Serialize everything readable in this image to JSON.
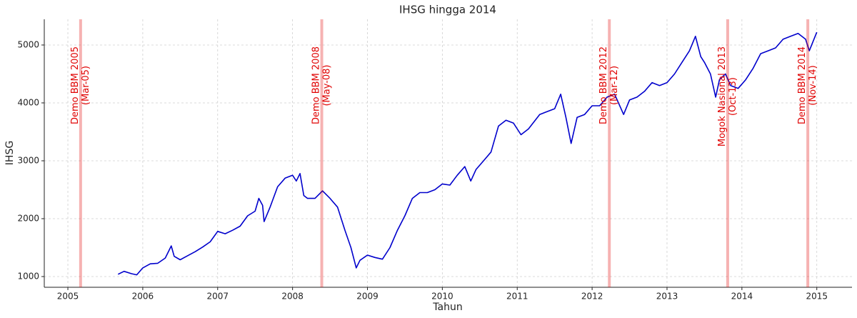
{
  "chart_data": {
    "type": "line",
    "title": "IHSG hingga 2014",
    "xlabel": "Tahun",
    "ylabel": "IHSG",
    "xlim": [
      2004.685,
      2015.47
    ],
    "ylim": [
      815,
      5444
    ],
    "xticks": [
      2005,
      2006,
      2007,
      2008,
      2009,
      2010,
      2011,
      2012,
      2013,
      2014,
      2015
    ],
    "yticks": [
      1000,
      2000,
      3000,
      4000,
      5000
    ],
    "grid": true,
    "x": [
      2005.67,
      2005.75,
      2005.85,
      2005.92,
      2006.0,
      2006.1,
      2006.2,
      2006.3,
      2006.35,
      2006.38,
      2006.42,
      2006.5,
      2006.6,
      2006.7,
      2006.8,
      2006.9,
      2007.0,
      2007.1,
      2007.2,
      2007.3,
      2007.4,
      2007.5,
      2007.55,
      2007.6,
      2007.62,
      2007.7,
      2007.8,
      2007.9,
      2008.0,
      2008.05,
      2008.1,
      2008.15,
      2008.2,
      2008.3,
      2008.4,
      2008.5,
      2008.6,
      2008.7,
      2008.78,
      2008.85,
      2008.9,
      2009.0,
      2009.1,
      2009.2,
      2009.3,
      2009.4,
      2009.5,
      2009.6,
      2009.7,
      2009.8,
      2009.9,
      2010.0,
      2010.1,
      2010.2,
      2010.3,
      2010.38,
      2010.45,
      2010.55,
      2010.65,
      2010.75,
      2010.85,
      2010.95,
      2011.05,
      2011.15,
      2011.3,
      2011.4,
      2011.5,
      2011.58,
      2011.65,
      2011.72,
      2011.8,
      2011.9,
      2012.0,
      2012.1,
      2012.2,
      2012.3,
      2012.42,
      2012.5,
      2012.6,
      2012.7,
      2012.8,
      2012.9,
      2013.0,
      2013.1,
      2013.2,
      2013.3,
      2013.38,
      2013.45,
      2013.5,
      2013.58,
      2013.65,
      2013.7,
      2013.78,
      2013.85,
      2013.95,
      2014.05,
      2014.15,
      2014.25,
      2014.35,
      2014.45,
      2014.55,
      2014.65,
      2014.75,
      2014.85,
      2014.9,
      2015.0
    ],
    "series": [
      {
        "name": "IHSG",
        "color": "#0000cc",
        "values": [
          1040,
          1090,
          1050,
          1030,
          1150,
          1220,
          1230,
          1320,
          1450,
          1530,
          1350,
          1290,
          1360,
          1430,
          1510,
          1600,
          1780,
          1740,
          1800,
          1870,
          2050,
          2130,
          2350,
          2230,
          1950,
          2200,
          2550,
          2700,
          2750,
          2650,
          2780,
          2400,
          2350,
          2350,
          2480,
          2350,
          2200,
          1800,
          1500,
          1150,
          1280,
          1370,
          1330,
          1300,
          1500,
          1800,
          2050,
          2350,
          2450,
          2450,
          2500,
          2600,
          2580,
          2750,
          2900,
          2650,
          2850,
          3000,
          3150,
          3600,
          3700,
          3650,
          3450,
          3550,
          3800,
          3850,
          3900,
          4150,
          3750,
          3300,
          3750,
          3800,
          3950,
          3950,
          4100,
          4150,
          3800,
          4050,
          4100,
          4200,
          4350,
          4300,
          4350,
          4500,
          4700,
          4900,
          5150,
          4800,
          4700,
          4500,
          4100,
          4400,
          4500,
          4300,
          4250,
          4400,
          4600,
          4850,
          4900,
          4950,
          5100,
          5150,
          5200,
          5100,
          4900,
          5220
        ]
      }
    ],
    "annotations": [
      {
        "x": 2005.17,
        "lines": [
          "Demo BBM 2005",
          "(Mar-05)"
        ],
        "color": "#e00000"
      },
      {
        "x": 2008.39,
        "lines": [
          "Demo BBM 2008",
          "(May-08)"
        ],
        "color": "#e00000"
      },
      {
        "x": 2012.23,
        "lines": [
          "Demo BBM 2012",
          "(Mar-12)"
        ],
        "color": "#e00000"
      },
      {
        "x": 2013.81,
        "lines": [
          "Mogok Nasional 2013",
          "(Oct-13)"
        ],
        "color": "#e00000"
      },
      {
        "x": 2014.88,
        "lines": [
          "Demo BBM 2014",
          "(Nov-14)"
        ],
        "color": "#e00000"
      }
    ]
  }
}
